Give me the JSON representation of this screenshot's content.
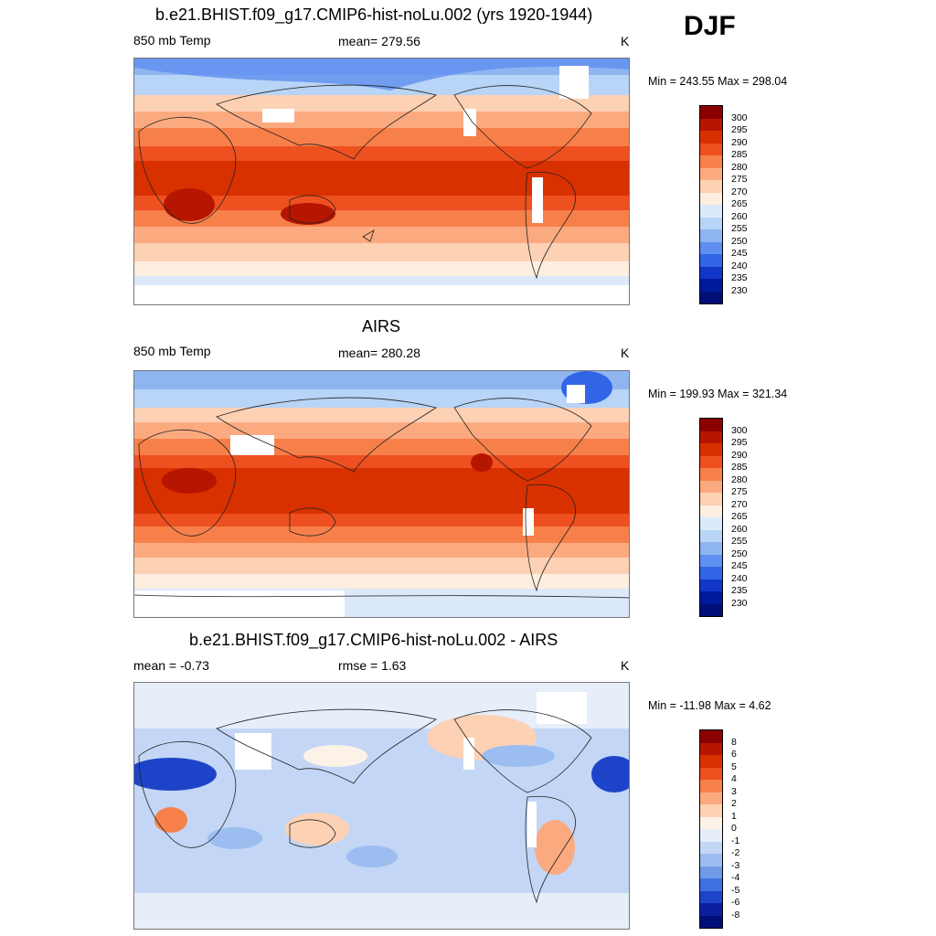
{
  "season": "DJF",
  "panels": [
    {
      "id": "model",
      "title": "b.e21.BHIST.f09_g17.CMIP6-hist-noLu.002 (yrs 1920-1944)",
      "left_label": "850 mb Temp",
      "center_label": "mean= 279.56",
      "units": "K",
      "minmax": "Min = 243.55 Max = 298.04",
      "colorbar": {
        "levels": [
          "300",
          "295",
          "290",
          "285",
          "280",
          "275",
          "270",
          "265",
          "260",
          "255",
          "250",
          "245",
          "240",
          "235",
          "230"
        ],
        "colors": [
          "#8b0000",
          "#b61600",
          "#d93000",
          "#ee5020",
          "#f7804a",
          "#fbaa80",
          "#fdd1b4",
          "#fdeee0",
          "#dbe9fa",
          "#b8d4f6",
          "#8fb5f0",
          "#5f8ff0",
          "#3165e6",
          "#1236c8",
          "#001a9e",
          "#000f78"
        ]
      }
    },
    {
      "id": "obs",
      "title": "AIRS",
      "left_label": "850 mb Temp",
      "center_label": "mean= 280.28",
      "units": "K",
      "minmax": "Min = 199.93 Max = 321.34",
      "colorbar": {
        "levels": [
          "300",
          "295",
          "290",
          "285",
          "280",
          "275",
          "270",
          "265",
          "260",
          "255",
          "250",
          "245",
          "240",
          "235",
          "230"
        ],
        "colors": [
          "#8b0000",
          "#b61600",
          "#d93000",
          "#ee5020",
          "#f7804a",
          "#fbaa80",
          "#fdd1b4",
          "#fdeee0",
          "#dbe9fa",
          "#b8d4f6",
          "#8fb5f0",
          "#5f8ff0",
          "#3165e6",
          "#1236c8",
          "#001a9e",
          "#000f78"
        ]
      }
    },
    {
      "id": "diff",
      "title": "b.e21.BHIST.f09_g17.CMIP6-hist-noLu.002 - AIRS",
      "left_label": "mean =  -0.73",
      "center_label": "rmse =   1.63",
      "units": "K",
      "minmax": "Min = -11.98 Max =   4.62",
      "colorbar": {
        "levels": [
          "8",
          "6",
          "5",
          "4",
          "3",
          "2",
          "1",
          "0",
          "-1",
          "-2",
          "-3",
          "-4",
          "-5",
          "-6",
          "-8"
        ],
        "colors": [
          "#8b0000",
          "#b61600",
          "#d93000",
          "#ee5020",
          "#f7804a",
          "#fbaa80",
          "#fdd1b4",
          "#fdf2e8",
          "#e6eef9",
          "#c3d6f5",
          "#9cbdf0",
          "#6f9ae8",
          "#3f70df",
          "#1d44c8",
          "#0a1fa0",
          "#000f78"
        ]
      }
    }
  ]
}
